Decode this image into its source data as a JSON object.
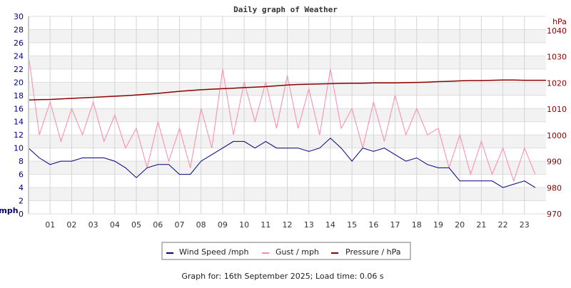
{
  "chart_data": {
    "type": "line",
    "title": "Daily graph of Weather",
    "footer": "Graph for: 16th September 2025; Load time: 0.06 s",
    "x_ticks": [
      "01",
      "02",
      "03",
      "04",
      "05",
      "06",
      "07",
      "08",
      "09",
      "10",
      "11",
      "12",
      "13",
      "14",
      "15",
      "16",
      "17",
      "18",
      "19",
      "20",
      "21",
      "22",
      "23"
    ],
    "xlim": [
      0,
      24
    ],
    "y_left": {
      "label": "mph",
      "lim": [
        0,
        30
      ],
      "ticks": [
        0,
        2,
        4,
        6,
        8,
        10,
        12,
        14,
        16,
        18,
        20,
        22,
        24,
        26,
        28,
        30
      ]
    },
    "y_right": {
      "label": "hPa",
      "lim": [
        970,
        1045.4
      ],
      "ticks": [
        970,
        980,
        990,
        1000,
        1010,
        1020,
        1030,
        1040
      ]
    },
    "grid": true,
    "legend_position": "bottom",
    "x": [
      0,
      0.5,
      1,
      1.5,
      2,
      2.5,
      3,
      3.5,
      4,
      4.5,
      5,
      5.5,
      6,
      6.5,
      7,
      7.5,
      8,
      8.5,
      9,
      9.5,
      10,
      10.5,
      11,
      11.5,
      12,
      12.5,
      13,
      13.5,
      14,
      14.5,
      15,
      15.5,
      16,
      16.5,
      17,
      17.5,
      18,
      18.5,
      19,
      19.5,
      20,
      20.5,
      21,
      21.5,
      22,
      22.5,
      23,
      23.5
    ],
    "series": [
      {
        "name": "Wind Speed /mph",
        "axis": "left",
        "color": "#000080",
        "values": [
          10,
          8.5,
          7.5,
          8,
          8,
          8.5,
          8.5,
          8.5,
          8,
          7,
          5.5,
          7,
          7.5,
          7.5,
          6,
          6,
          8,
          9,
          10,
          11,
          11,
          10,
          11,
          10,
          10,
          10,
          9.5,
          10,
          11.5,
          10,
          8,
          10,
          9.5,
          10,
          9,
          8,
          8.5,
          7.5,
          7,
          7,
          5,
          5,
          5,
          5,
          4,
          4.5,
          5,
          4
        ]
      },
      {
        "name": "Gust / mph",
        "axis": "left",
        "color": "#ff88aa",
        "values": [
          24,
          12,
          17,
          11,
          16,
          12,
          17,
          11,
          15,
          10,
          13,
          7,
          14,
          8,
          13,
          7,
          16,
          10,
          22,
          12,
          20,
          14,
          20,
          13,
          21,
          13,
          19,
          12,
          22,
          13,
          16,
          10,
          17,
          11,
          18,
          12,
          16,
          12,
          13,
          7,
          12,
          6,
          11,
          6,
          10,
          5,
          10,
          6
        ]
      },
      {
        "name": "Pressure / hPa",
        "axis": "right",
        "color": "#8b0000",
        "values": [
          1013.5,
          1013.6,
          1013.7,
          1013.9,
          1014.1,
          1014.3,
          1014.5,
          1014.7,
          1014.9,
          1015.1,
          1015.4,
          1015.7,
          1016,
          1016.4,
          1016.8,
          1017.1,
          1017.4,
          1017.6,
          1017.8,
          1018,
          1018.2,
          1018.4,
          1018.6,
          1018.9,
          1019.2,
          1019.4,
          1019.5,
          1019.6,
          1019.7,
          1019.8,
          1019.9,
          1019.9,
          1020,
          1020,
          1020,
          1020.1,
          1020.2,
          1020.3,
          1020.5,
          1020.6,
          1020.8,
          1020.9,
          1020.9,
          1021,
          1021.1,
          1021.1,
          1021,
          1021
        ]
      }
    ]
  }
}
